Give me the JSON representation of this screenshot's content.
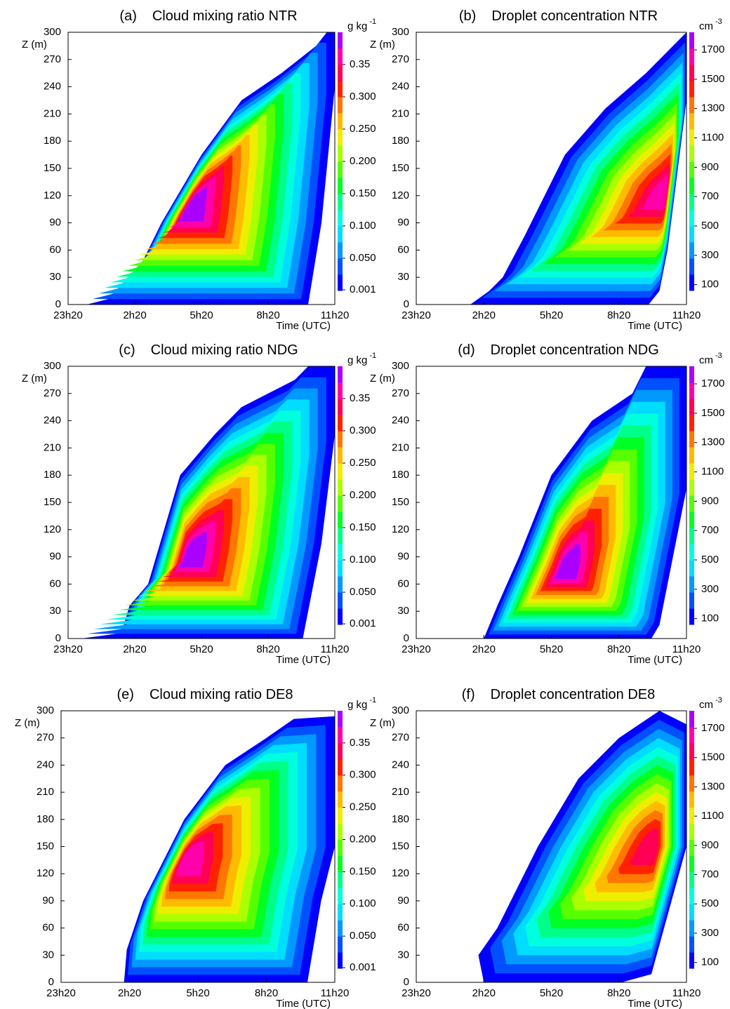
{
  "chart_data": [
    {
      "type": "contour",
      "panel_label": "(a)",
      "title": "Cloud mixing ratio NTR",
      "ylabel": "Z (m)",
      "xlabel": "Time (UTC)",
      "categories": [
        "23h20",
        "2h20",
        "5h20",
        "8h20",
        "11h20"
      ],
      "ylim": [
        0,
        300
      ],
      "yticks": [
        0,
        30,
        60,
        90,
        120,
        150,
        180,
        210,
        240,
        270,
        300
      ],
      "colorbar": {
        "unit": "g kg",
        "unit_exponent": "-1",
        "lim": [
          0,
          0.4
        ],
        "ticks": [
          0.001,
          {
            "value": 0.05,
            "label": "0.050"
          },
          {
            "value": 0.1,
            "label": "0.100"
          },
          {
            "value": 0.15,
            "label": "0.150"
          },
          {
            "value": 0.2,
            "label": "0.200"
          },
          {
            "value": 0.25,
            "label": "0.250"
          },
          {
            "value": 0.3,
            "label": "0.300"
          },
          0.35
        ],
        "colors": [
          "#0000ff",
          "#0050ff",
          "#0099ff",
          "#00ddff",
          "#00ffdd",
          "#00ff88",
          "#00ff22",
          "#55ff00",
          "#aaff00",
          "#eeee00",
          "#ffbb00",
          "#ff7700",
          "#ff2200",
          "#ff0055",
          "#ff00aa",
          "#aa00ff"
        ]
      }
    },
    {
      "type": "contour",
      "panel_label": "(b)",
      "title": "Droplet concentration NTR",
      "ylabel": "Z (m)",
      "xlabel": "Time (UTC)",
      "categories": [
        "23h20",
        "2h20",
        "5h20",
        "8h20",
        "11h20"
      ],
      "ylim": [
        0,
        300
      ],
      "yticks": [
        0,
        30,
        60,
        90,
        120,
        150,
        180,
        210,
        240,
        270,
        300
      ],
      "colorbar": {
        "unit": "cm",
        "unit_exponent": "-3",
        "lim": [
          60,
          1820
        ],
        "ticks": [
          100,
          300,
          500,
          700,
          900,
          1100,
          1300,
          1500,
          1700
        ],
        "colors": [
          "#0000ff",
          "#0050ff",
          "#0099ff",
          "#00ddff",
          "#00ffdd",
          "#00ff88",
          "#00ff22",
          "#55ff00",
          "#aaff00",
          "#eeee00",
          "#ffbb00",
          "#ff7700",
          "#ff2200",
          "#ff0055",
          "#ff00aa",
          "#aa00ff"
        ]
      }
    },
    {
      "type": "contour",
      "panel_label": "(c)",
      "title": "Cloud mixing ratio NDG",
      "ylabel": "Z (m)",
      "xlabel": "Time (UTC)",
      "categories": [
        "23h20",
        "2h20",
        "5h20",
        "8h20",
        "11h20"
      ],
      "ylim": [
        0,
        300
      ],
      "yticks": [
        0,
        30,
        60,
        90,
        120,
        150,
        180,
        210,
        240,
        270,
        300
      ],
      "colorbar": {
        "unit": "g kg",
        "unit_exponent": "-1",
        "lim": [
          0,
          0.4
        ],
        "ticks": [
          0.001,
          {
            "value": 0.05,
            "label": "0.050"
          },
          {
            "value": 0.1,
            "label": "0.100"
          },
          {
            "value": 0.15,
            "label": "0.150"
          },
          {
            "value": 0.2,
            "label": "0.200"
          },
          {
            "value": 0.25,
            "label": "0.250"
          },
          {
            "value": 0.3,
            "label": "0.300"
          },
          0.35
        ],
        "colors": [
          "#0000ff",
          "#0050ff",
          "#0099ff",
          "#00ddff",
          "#00ffdd",
          "#00ff88",
          "#00ff22",
          "#55ff00",
          "#aaff00",
          "#eeee00",
          "#ffbb00",
          "#ff7700",
          "#ff2200",
          "#ff0055",
          "#ff00aa",
          "#aa00ff"
        ]
      }
    },
    {
      "type": "contour",
      "panel_label": "(d)",
      "title": "Droplet concentration NDG",
      "ylabel": "Z (m)",
      "xlabel": "Time (UTC)",
      "categories": [
        "23h20",
        "2h20",
        "5h20",
        "8h20",
        "11h20"
      ],
      "ylim": [
        0,
        300
      ],
      "yticks": [
        0,
        30,
        60,
        90,
        120,
        150,
        180,
        210,
        240,
        270,
        300
      ],
      "colorbar": {
        "unit": "cm",
        "unit_exponent": "-3",
        "lim": [
          60,
          1820
        ],
        "ticks": [
          100,
          300,
          500,
          700,
          900,
          1100,
          1300,
          1500,
          1700
        ],
        "colors": [
          "#0000ff",
          "#0050ff",
          "#0099ff",
          "#00ddff",
          "#00ffdd",
          "#00ff88",
          "#00ff22",
          "#55ff00",
          "#aaff00",
          "#eeee00",
          "#ffbb00",
          "#ff7700",
          "#ff2200",
          "#ff0055",
          "#ff00aa",
          "#aa00ff"
        ]
      }
    },
    {
      "type": "contour",
      "panel_label": "(e)",
      "title": "Cloud mixing ratio DE8",
      "ylabel": "Z (m)",
      "xlabel": "Time (UTC)",
      "categories": [
        "23h20",
        "2h20",
        "5h20",
        "8h20",
        "11h20"
      ],
      "ylim": [
        0,
        300
      ],
      "yticks": [
        0,
        30,
        60,
        90,
        120,
        150,
        180,
        210,
        240,
        270,
        300
      ],
      "colorbar": {
        "unit": "g kg",
        "unit_exponent": "-1",
        "lim": [
          0,
          0.4
        ],
        "ticks": [
          0.001,
          {
            "value": 0.05,
            "label": "0.050"
          },
          {
            "value": 0.1,
            "label": "0.100"
          },
          {
            "value": 0.15,
            "label": "0.150"
          },
          {
            "value": 0.2,
            "label": "0.200"
          },
          {
            "value": 0.25,
            "label": "0.250"
          },
          {
            "value": 0.3,
            "label": "0.300"
          },
          0.35
        ],
        "colors": [
          "#0000ff",
          "#0050ff",
          "#0099ff",
          "#00ddff",
          "#00ffdd",
          "#00ff88",
          "#00ff22",
          "#55ff00",
          "#aaff00",
          "#eeee00",
          "#ffbb00",
          "#ff7700",
          "#ff2200",
          "#ff0055",
          "#ff00aa",
          "#aa00ff"
        ]
      }
    },
    {
      "type": "contour",
      "panel_label": "(f)",
      "title": "Droplet concentration DE8",
      "ylabel": "Z (m)",
      "xlabel": "Time (UTC)",
      "categories": [
        "23h20",
        "2h20",
        "5h20",
        "8h20",
        "11h20"
      ],
      "ylim": [
        0,
        300
      ],
      "yticks": [
        0,
        30,
        60,
        90,
        120,
        150,
        180,
        210,
        240,
        270,
        300
      ],
      "colorbar": {
        "unit": "cm",
        "unit_exponent": "-3",
        "lim": [
          60,
          1820
        ],
        "ticks": [
          100,
          300,
          500,
          700,
          900,
          1100,
          1300,
          1500,
          1700
        ],
        "colors": [
          "#0000ff",
          "#0050ff",
          "#0099ff",
          "#00ddff",
          "#00ffdd",
          "#00ff88",
          "#00ff22",
          "#55ff00",
          "#aaff00",
          "#eeee00",
          "#ffbb00",
          "#ff7700",
          "#ff2200",
          "#ff0055",
          "#ff00aa",
          "#aa00ff"
        ]
      }
    }
  ]
}
